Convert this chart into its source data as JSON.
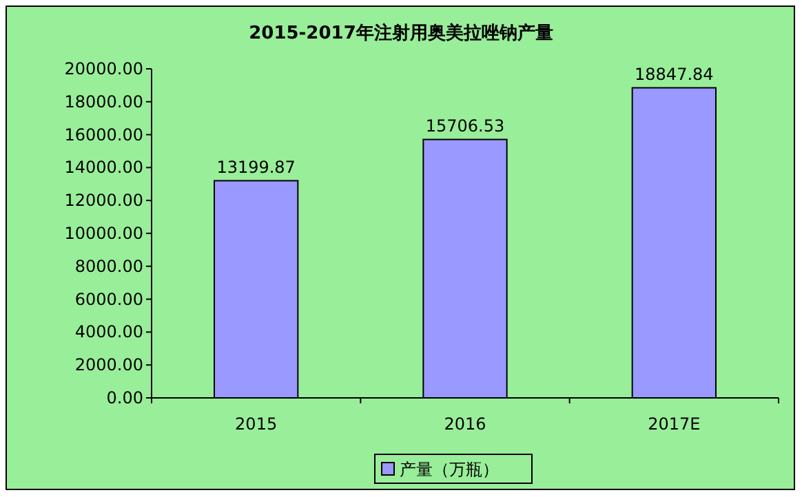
{
  "chart_data": {
    "type": "bar",
    "title": "2015-2017年注射用奥美拉唑钠产量",
    "categories": [
      "2015",
      "2016",
      "2017E"
    ],
    "series": [
      {
        "name": "产量（万瓶）",
        "color": "#9999ff",
        "values": [
          13199.87,
          15706.53,
          18847.84
        ]
      }
    ],
    "ylim": [
      0,
      20000
    ],
    "yticks": [
      {
        "value": 0,
        "label": "0.00"
      },
      {
        "value": 2000,
        "label": "2000.00"
      },
      {
        "value": 4000,
        "label": "4000.00"
      },
      {
        "value": 6000,
        "label": "6000.00"
      },
      {
        "value": 8000,
        "label": "8000.00"
      },
      {
        "value": 10000,
        "label": "10000.00"
      },
      {
        "value": 12000,
        "label": "12000.00"
      },
      {
        "value": 14000,
        "label": "14000.00"
      },
      {
        "value": 16000,
        "label": "16000.00"
      },
      {
        "value": 18000,
        "label": "18000.00"
      },
      {
        "value": 20000,
        "label": "20000.00"
      }
    ],
    "value_labels": [
      "13199.87",
      "15706.53",
      "18847.84"
    ],
    "grid": false,
    "legend": "bottom"
  }
}
